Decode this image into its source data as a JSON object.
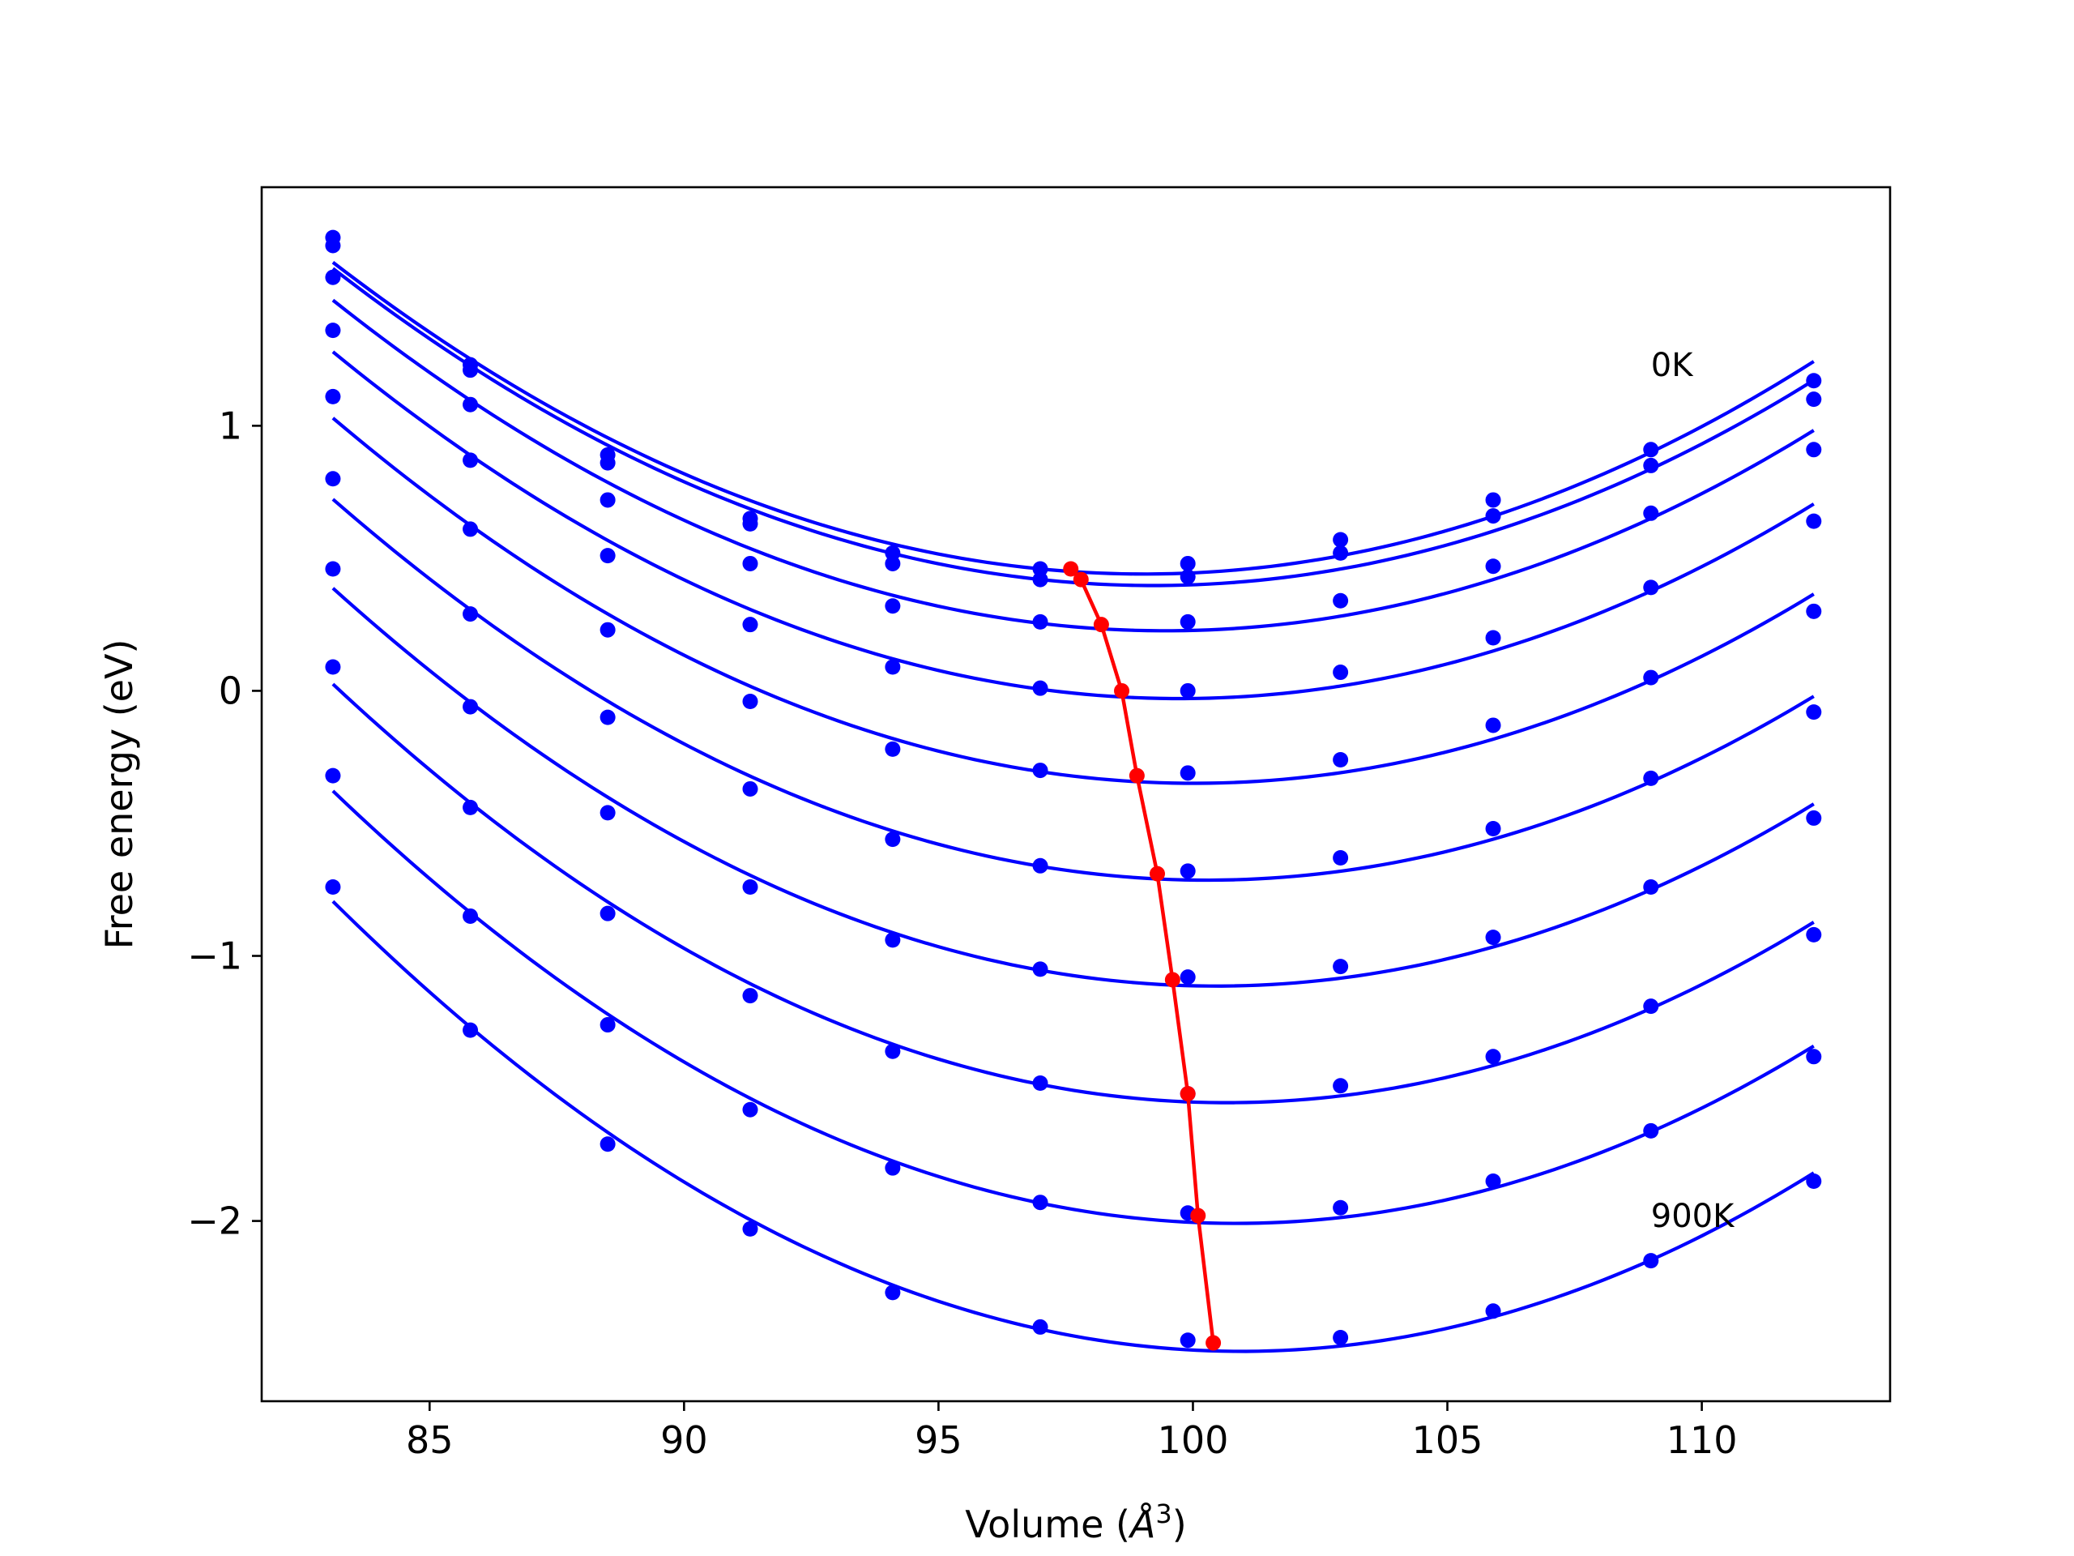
{
  "colors": {
    "isotherm": "#0000ff",
    "minimum_path": "#ff0000",
    "axes": "#000000",
    "background": "#ffffff"
  },
  "chart_data": {
    "type": "line",
    "title": "",
    "xlabel": "Volume (Å^3)",
    "xlabel_parts": {
      "before": "Volume (",
      "symbol": "Å",
      "exponent": "3",
      "after": ")"
    },
    "ylabel": "Free energy (eV)",
    "xlim": [
      81.7,
      113.7
    ],
    "ylim": [
      -2.68,
      1.9
    ],
    "x_ticks": [
      85,
      90,
      95,
      100,
      105,
      110
    ],
    "x_tick_labels": [
      "85",
      "90",
      "95",
      "100",
      "105",
      "110"
    ],
    "y_ticks": [
      -2,
      -1,
      0,
      1
    ],
    "y_tick_labels": [
      "−2",
      "−1",
      "0",
      "1"
    ],
    "grid": false,
    "legend": "none",
    "annotations": [
      {
        "text": "0K",
        "x": 109.0,
        "y": 1.23
      },
      {
        "text": "900K",
        "x": 109.0,
        "y": -1.98
      }
    ],
    "volumes": [
      83.1,
      85.8,
      88.5,
      91.3,
      94.1,
      97.0,
      99.9,
      102.9,
      105.9,
      109.0,
      112.2
    ],
    "series": [
      {
        "values": [
          1.71,
          1.23,
          0.89,
          0.65,
          0.52,
          0.46,
          0.48,
          0.57,
          0.72,
          0.91,
          1.17
        ],
        "min_volume": 97.6,
        "min_energy": 0.46
      },
      {
        "values": [
          1.68,
          1.21,
          0.86,
          0.63,
          0.48,
          0.42,
          0.43,
          0.52,
          0.66,
          0.85,
          1.1
        ],
        "min_volume": 97.8,
        "min_energy": 0.42
      },
      {
        "values": [
          1.56,
          1.08,
          0.72,
          0.48,
          0.32,
          0.26,
          0.26,
          0.34,
          0.47,
          0.67,
          0.91
        ],
        "min_volume": 98.2,
        "min_energy": 0.25
      },
      {
        "values": [
          1.36,
          0.87,
          0.51,
          0.25,
          0.09,
          0.01,
          0.0,
          0.07,
          0.2,
          0.39,
          0.64
        ],
        "min_volume": 98.6,
        "min_energy": 0.0
      },
      {
        "values": [
          1.11,
          0.61,
          0.23,
          -0.04,
          -0.22,
          -0.3,
          -0.31,
          -0.26,
          -0.13,
          0.05,
          0.3
        ],
        "min_volume": 98.9,
        "min_energy": -0.32
      },
      {
        "values": [
          0.8,
          0.29,
          -0.1,
          -0.37,
          -0.56,
          -0.66,
          -0.68,
          -0.63,
          -0.52,
          -0.33,
          -0.08
        ],
        "min_volume": 99.3,
        "min_energy": -0.69
      },
      {
        "values": [
          0.46,
          -0.06,
          -0.46,
          -0.74,
          -0.94,
          -1.05,
          -1.08,
          -1.04,
          -0.93,
          -0.74,
          -0.48
        ],
        "min_volume": 99.6,
        "min_energy": -1.09
      },
      {
        "values": [
          0.09,
          -0.44,
          -0.84,
          -1.15,
          -1.36,
          -1.48,
          -1.52,
          -1.49,
          -1.38,
          -1.19,
          -0.92
        ],
        "min_volume": 99.9,
        "min_energy": -1.52
      },
      {
        "values": [
          -0.32,
          -0.85,
          -1.26,
          -1.58,
          -1.8,
          -1.93,
          -1.97,
          -1.95,
          -1.85,
          -1.66,
          -1.38
        ],
        "min_volume": 100.1,
        "min_energy": -1.98
      },
      {
        "values": [
          -0.74,
          -1.28,
          -1.71,
          -2.03,
          -2.27,
          -2.4,
          -2.45,
          -2.44,
          -2.34,
          -2.15,
          -1.85
        ],
        "min_volume": 100.4,
        "min_energy": -2.46
      }
    ]
  }
}
